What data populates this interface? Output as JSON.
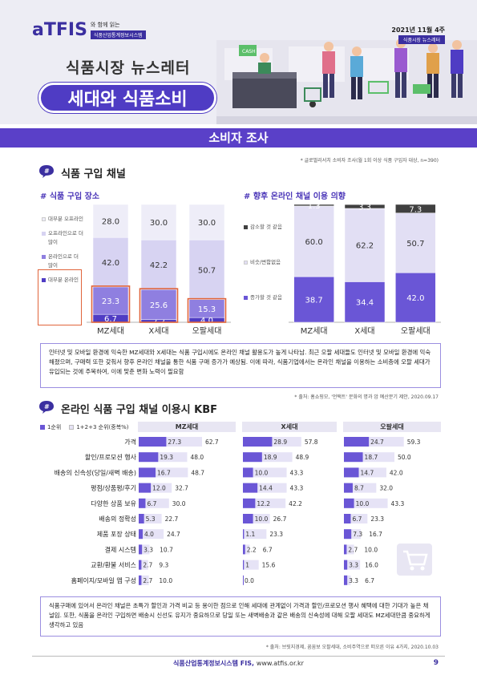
{
  "header": {
    "logo_text": "aTFIS",
    "logo_with": "와 함께 읽는",
    "logo_sub": "식품산업통계정보시스템",
    "issue_date": "2021년 11월 4주",
    "issue_tag": "식품시장 뉴스레터",
    "newsletter_title": "식품시장 뉴스레터",
    "main_title": "세대와 식품소비",
    "cash_sign": "CASH"
  },
  "section_bar": "소비자 조사",
  "survey_note": "* 글로벌리서치 소비자 조사(월 1회 이상 식품 구입자 대상, n=390)",
  "section1": {
    "title": "식품 구입 채널",
    "badge": "#",
    "left_subtitle": "# 식품 구입 장소",
    "right_subtitle": "# 향후 온라인 채널 이용 의향",
    "left_legend": [
      "대부분 오프라인",
      "오프라인으로 더 많이",
      "온라인으로 더 많이",
      "대부분 온라인"
    ],
    "right_legend": [
      "감소할 것 같음",
      "비슷/변함없음",
      "증가할 것 같음"
    ],
    "summary": "인터넷 및 모바일 환경에 익숙한 MZ세대와 X세대는 식품 구입시에도 온라인 채널 활용도가 높게 나타남. 최근 오팔 세대들도 인터넷 및 모바일 환경에 익숙해졌으며, 구매력 또한 갖춰서 향후 온라인 채널을 통한 식품 구매 증가가 예상됨. 이에 따라, 식품기업에서는 온라인 채널을 이용하는 소비층에 오팔 세대가 유입되는 것에 주목하여, 이에 맞춘 변화 노력이 필요함",
    "source": "* 출처: 홈쇼핑모, '언택트' 문화의 명과 암 예산분기 제안, 2020.09.17"
  },
  "chart_data": [
    {
      "type": "bar",
      "stacked": true,
      "title": "# 식품 구입 장소",
      "categories": [
        "MZ세대",
        "X세대",
        "오팔세대"
      ],
      "series": [
        {
          "name": "대부분 온라인",
          "values": [
            6.7,
            2.2,
            4.0
          ]
        },
        {
          "name": "온라인으로 더 많이",
          "values": [
            23.3,
            25.6,
            15.3
          ]
        },
        {
          "name": "오프라인으로 더 많이",
          "values": [
            42.0,
            42.2,
            50.7
          ]
        },
        {
          "name": "대부분 오프라인",
          "values": [
            28.0,
            30.0,
            30.0
          ]
        }
      ],
      "display_labels": [
        [
          "6.7",
          "23.3",
          "42.0",
          "28.0"
        ],
        [
          "2.2",
          "25.6",
          "42.2",
          "30.0"
        ],
        [
          "4.0",
          "15.3",
          "50.7",
          "30.0"
        ]
      ],
      "ylim": [
        0,
        100
      ],
      "colors": [
        "#4f3cc4",
        "#8f7fe0",
        "#d7d3f2",
        "#eeedf8"
      ],
      "highlight": "온라인 합계",
      "legend": "left"
    },
    {
      "type": "bar",
      "stacked": true,
      "title": "# 향후 온라인 채널 이용 의향",
      "categories": [
        "MZ세대",
        "X세대",
        "오팔세대"
      ],
      "series": [
        {
          "name": "증가할 것 같음",
          "values": [
            38.7,
            34.4,
            42.0
          ]
        },
        {
          "name": "비슷/변함없음",
          "values": [
            60.0,
            62.2,
            50.7
          ]
        },
        {
          "name": "감소할 것 같음",
          "values": [
            1.3,
            3.3,
            7.3
          ]
        }
      ],
      "ylim": [
        0,
        100
      ],
      "colors": [
        "#6a56d6",
        "#e2dff4",
        "#404040"
      ],
      "legend": "left"
    },
    {
      "type": "bar",
      "orientation": "horizontal",
      "title": "온라인 식품 구입 채널 이용시 KBF",
      "categories": [
        "가격",
        "할인/프로모션 행사",
        "배송의 신속성(당일/새벽 배송)",
        "평점/상품평/후기",
        "다양한 상품 보유",
        "배송의 정확성",
        "제품 포장 상태",
        "결제 시스템",
        "교환/환불 서비스",
        "홈페이지/모바일 앱 구성"
      ],
      "panels": [
        {
          "name": "MZ세대",
          "series": [
            {
              "name": "1순위",
              "values": [
                27.3,
                19.3,
                16.7,
                12.0,
                6.7,
                5.3,
                4.0,
                3.3,
                2.7,
                2.7
              ]
            },
            {
              "name": "1+2+3 순위(중복%)",
              "values": [
                62.7,
                48.0,
                48.7,
                32.7,
                30.0,
                22.7,
                24.7,
                10.7,
                9.3,
                10.0
              ]
            }
          ],
          "display_labels": [
            [
              "27.3",
              "62.7"
            ],
            [
              "19.3",
              "48.0"
            ],
            [
              "16.7",
              "48.7"
            ],
            [
              "12.0",
              "32.7"
            ],
            [
              "6.7",
              "30.0"
            ],
            [
              "5.3",
              "22.7"
            ],
            [
              "4.0",
              "24.7"
            ],
            [
              "3.3",
              "10.7"
            ],
            [
              "2.7",
              "9.3"
            ],
            [
              "2.7",
              "10.0"
            ]
          ]
        },
        {
          "name": "X세대",
          "series": [
            {
              "name": "1순위",
              "values": [
                28.9,
                18.9,
                10.0,
                14.4,
                12.2,
                10.0,
                1.1,
                2.2,
                1.0,
                0.0
              ]
            },
            {
              "name": "1+2+3 순위(중복%)",
              "values": [
                57.8,
                48.9,
                43.3,
                43.3,
                42.2,
                26.7,
                23.3,
                6.7,
                15.6,
                0.0
              ]
            }
          ],
          "display_labels": [
            [
              "28.9",
              "57.8"
            ],
            [
              "18.9",
              "48.9"
            ],
            [
              "10.0",
              "43.3"
            ],
            [
              "14.4",
              "43.3"
            ],
            [
              "12.2",
              "42.2"
            ],
            [
              "10.0",
              "26.7"
            ],
            [
              "1.1",
              "23.3"
            ],
            [
              "2.2",
              "6.7"
            ],
            [
              "1",
              "15.6"
            ],
            [
              "0.0",
              ""
            ]
          ]
        },
        {
          "name": "오팔세대",
          "series": [
            {
              "name": "1순위",
              "values": [
                24.7,
                18.7,
                14.7,
                8.7,
                10.0,
                6.7,
                7.3,
                2.7,
                3.3,
                3.3
              ]
            },
            {
              "name": "1+2+3 순위(중복%)",
              "values": [
                59.3,
                50.0,
                42.0,
                32.0,
                43.3,
                23.3,
                16.7,
                10.0,
                16.0,
                6.7
              ]
            }
          ],
          "display_labels": [
            [
              "24.7",
              "59.3"
            ],
            [
              "18.7",
              "50.0"
            ],
            [
              "14.7",
              "42.0"
            ],
            [
              "8.7",
              "32.0"
            ],
            [
              "10.0",
              "43.3"
            ],
            [
              "6.7",
              "23.3"
            ],
            [
              "7.3",
              "16.7"
            ],
            [
              "2.7",
              "10.0"
            ],
            [
              "3.3",
              "16.0"
            ],
            [
              "3.3",
              "6.7"
            ]
          ]
        }
      ],
      "xlim": [
        0,
        100
      ],
      "colors": [
        "#6a56d6",
        "#e6e3f6"
      ],
      "legend": "top-left"
    }
  ],
  "section2": {
    "title": "온라인 식품 구입 채널 이용시 KBF",
    "badge": "#",
    "legend_first": "1순위",
    "legend_total": "1+2+3 순위(중복%)",
    "summary": "식품구매에 있어서 온라인 채널은 초특가 할인과 가격 비교 등 용이한 점으로 인해 세대에 관계없이 가격과 할인/프로모션 행사 혜택에 대한 기대가 높은 채널임. 또한, 식품을 온라인 구입하면 배송시 신선도 유지가 중요하므로 당일 또는 새벽배송과 같은 배송의 신속성에 대해 오팔 세대도 MZ세대만큼 중요하게 생각하고 있음",
    "source": "* 출처: 브릿지경제, 꿈꿈보 오팔세대, 소비주역으로 떠오른 이유 4가지, 2020.10.03"
  },
  "footer": {
    "org": "식품산업통계정보시스템 FIS,",
    "url": "www.atfis.or.kr",
    "page": "9"
  },
  "colors": {
    "brand": "#4f3cc4",
    "accent_orange": "#e0643b"
  }
}
